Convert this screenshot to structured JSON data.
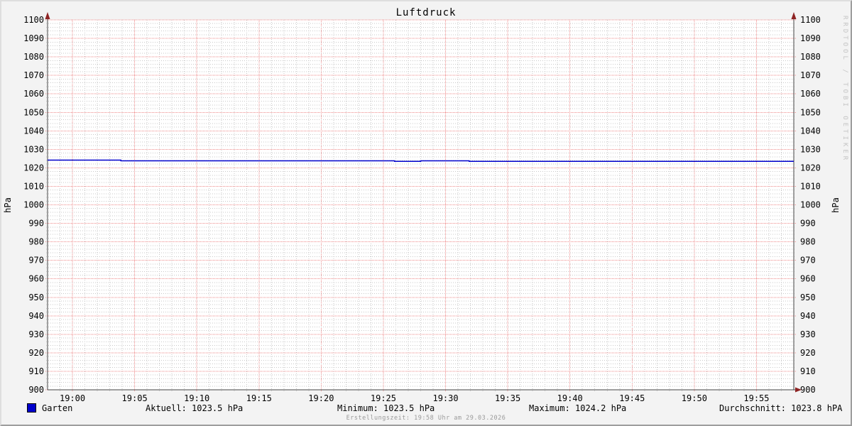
{
  "window": {
    "title": "Luftdruck"
  },
  "axes": {
    "unit_left": "hPa",
    "unit_right": "hPa"
  },
  "watermark": "RRDTOOL / TOBI OETIKER",
  "footer": "Erstellungszeit: 19:58 Uhr am 29.03.2026",
  "legend": {
    "series_label": "Garten",
    "stats": [
      {
        "name": "aktuell",
        "text": "Aktuell: 1023.5 hPa"
      },
      {
        "name": "minimum",
        "text": "Minimum: 1023.5 hPa"
      },
      {
        "name": "maximum",
        "text": "Maximum: 1024.2 hPa"
      },
      {
        "name": "durchschnitt",
        "text": "Durchschnitt: 1023.8 hPA"
      }
    ]
  },
  "colors": {
    "background": "#f3f3f3",
    "canvas": "#ffffff",
    "grid_minor": "#c9c9c9",
    "grid_major": "#ee8a8a",
    "axis": "#444444",
    "arrow": "#8e2323",
    "series": "#0000cc",
    "text": "#000000",
    "footer_text": "#9a9a9a",
    "watermark_text": "#c4c4c4"
  },
  "chart_data": {
    "type": "line",
    "title": "Luftdruck",
    "ylabel": "hPa",
    "ylim": [
      900,
      1100
    ],
    "y_major_step": 10,
    "y_minor_step": 2,
    "x_start_time": "18:58",
    "x_end_time": "19:58",
    "x_range_minutes": 60,
    "x_major_step_minutes": 5,
    "x_minor_step_minutes": 1,
    "x_first_tick_offset_minutes": 2,
    "x_tick_labels": [
      "19:00",
      "19:05",
      "19:10",
      "19:15",
      "19:20",
      "19:25",
      "19:30",
      "19:35",
      "19:40",
      "19:45",
      "19:50",
      "19:55"
    ],
    "grid": true,
    "legend_position": "bottom",
    "series": [
      {
        "name": "Garten",
        "color": "#0000cc",
        "mode": "step",
        "points_minutes_hpa": [
          [
            0,
            1024.2
          ],
          [
            5.9,
            1023.8
          ],
          [
            27.9,
            1023.5
          ],
          [
            30,
            1023.8
          ],
          [
            33.9,
            1023.5
          ],
          [
            60,
            1023.5
          ]
        ]
      }
    ],
    "stats": {
      "aktuell_hpa": 1023.5,
      "minimum_hpa": 1023.5,
      "maximum_hpa": 1024.2,
      "durchschnitt_hpa": 1023.8
    }
  }
}
